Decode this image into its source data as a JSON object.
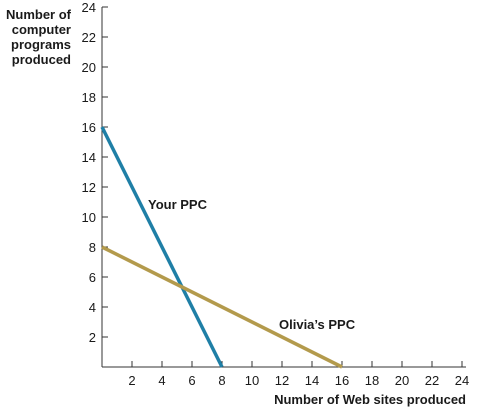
{
  "chart_data": {
    "type": "line",
    "title": "",
    "xlabel": "Number of Web sites produced",
    "ylabel": [
      "Number of",
      "computer",
      "programs",
      "produced"
    ],
    "xlim": [
      0,
      24
    ],
    "ylim": [
      0,
      24
    ],
    "x_ticks": [
      2,
      4,
      6,
      8,
      10,
      12,
      14,
      16,
      18,
      20,
      22,
      24
    ],
    "y_ticks": [
      2,
      4,
      6,
      8,
      10,
      12,
      14,
      16,
      18,
      20,
      22,
      24
    ],
    "grid": false,
    "series": [
      {
        "name": "Your PPC",
        "color": "#1f7fa6",
        "points": [
          [
            0,
            16
          ],
          [
            8,
            0
          ]
        ]
      },
      {
        "name": "Olivia’s PPC",
        "color": "#b39a4c",
        "points": [
          [
            0,
            8
          ],
          [
            16,
            0
          ]
        ]
      }
    ]
  }
}
